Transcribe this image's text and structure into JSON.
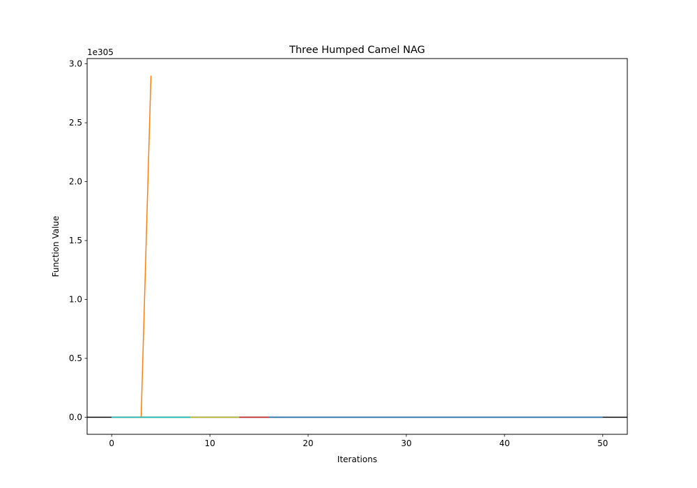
{
  "chart_data": {
    "type": "line",
    "title": "Three Humped Camel NAG",
    "xlabel": "Iterations",
    "ylabel": "Function Value",
    "y_offset_text": "1e305",
    "y_multiplier": 1e+305,
    "xlim": [
      -2.5,
      52.5
    ],
    "ylim": [
      -0.145,
      3.045
    ],
    "xticks": [
      0,
      10,
      20,
      30,
      40,
      50
    ],
    "xtick_labels": [
      "0",
      "10",
      "20",
      "30",
      "40",
      "50"
    ],
    "yticks": [
      0.0,
      0.5,
      1.0,
      1.5,
      2.0,
      2.5,
      3.0
    ],
    "ytick_labels": [
      "0.0",
      "0.5",
      "1.0",
      "1.5",
      "2.0",
      "2.5",
      "3.0"
    ],
    "grid": false,
    "legend": "none",
    "reference_line": {
      "y": 0,
      "color": "#000000"
    },
    "series": [
      {
        "color": "#ff7f0e",
        "x": [
          0,
          1,
          2,
          3,
          4
        ],
        "y": [
          0,
          0,
          0,
          0,
          2.9
        ]
      },
      {
        "color": "#2ca02c",
        "x": [
          0,
          1,
          2,
          3,
          4,
          5,
          6,
          7,
          8
        ],
        "y": [
          0,
          0,
          0,
          0,
          0,
          0,
          0,
          0,
          0
        ]
      },
      {
        "color": "#bcbd22",
        "x": [
          8,
          9,
          10,
          11,
          12,
          13
        ],
        "y": [
          0,
          0,
          0,
          0,
          0,
          0
        ]
      },
      {
        "color": "#d62728",
        "x": [
          13,
          14,
          15,
          16
        ],
        "y": [
          0,
          0,
          0,
          0
        ]
      },
      {
        "color": "#17becf",
        "x": [
          0,
          2,
          4,
          6,
          8
        ],
        "y": [
          0,
          0,
          0,
          0,
          0
        ]
      },
      {
        "color": "#1f77b4",
        "x": [
          16,
          20,
          25,
          30,
          35,
          40,
          45,
          50
        ],
        "y": [
          0,
          0,
          0,
          0,
          0,
          0,
          0,
          0
        ]
      }
    ]
  }
}
